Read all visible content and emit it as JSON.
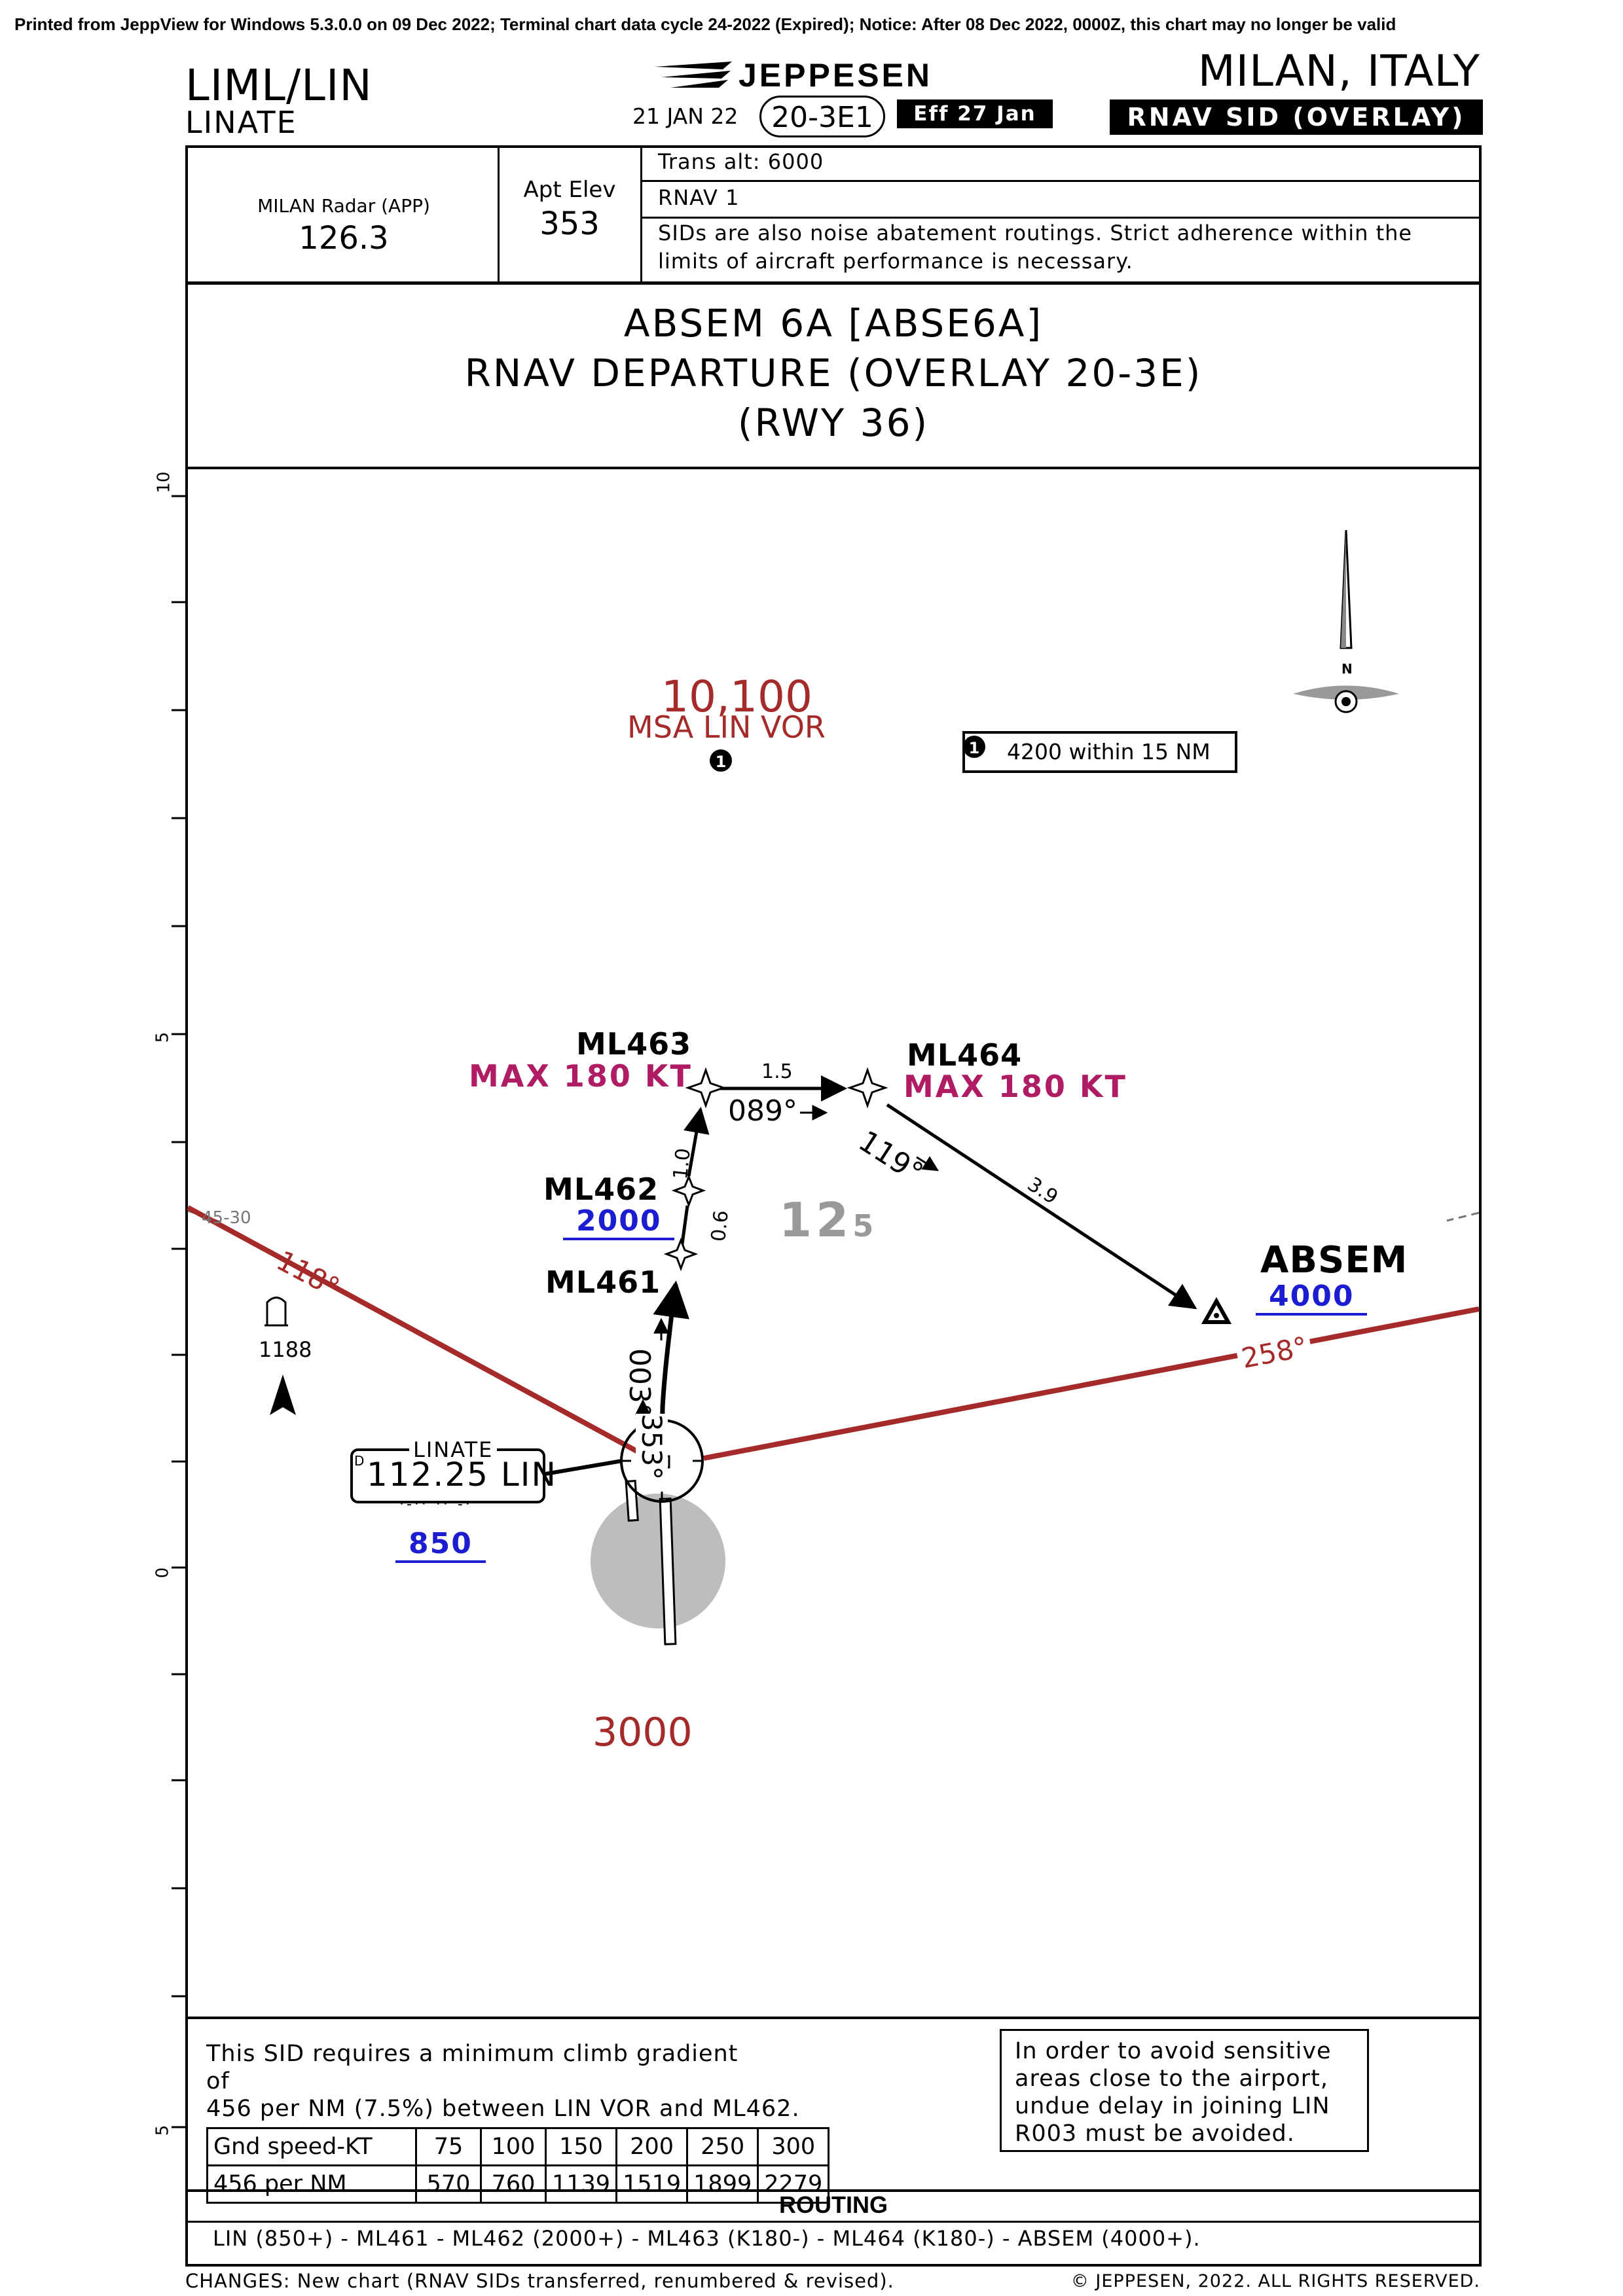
{
  "print_note": "Printed from JeppView for Windows 5.3.0.0 on 09 Dec 2022; Terminal chart data cycle 24-2022 (Expired); Notice: After 08 Dec 2022, 0000Z, this chart may no longer be valid",
  "header": {
    "ident": "LIML/LIN",
    "airport": "LINATE",
    "brand": "JEPPESEN",
    "date": "21 JAN 22",
    "chart_number": "20-3E1",
    "effective": "Eff 27 Jan",
    "city": "MILAN, ITALY",
    "procedure_type": "RNAV SID (OVERLAY)"
  },
  "info": {
    "comm_label": "MILAN Radar (APP)",
    "comm_freq": "126.3",
    "elev_label": "Apt Elev",
    "elev_value": "353",
    "trans_alt": "Trans alt: 6000",
    "nav_spec": "RNAV 1",
    "note_line1": "SIDs are also noise abatement routings. Strict adherence within the",
    "note_line2": "limits of aircraft performance is necessary."
  },
  "title": {
    "line1": "ABSEM 6A [ABSE6A]",
    "line2": "RNAV DEPARTURE (OVERLAY 20-3E)",
    "line3": "(RWY 36)"
  },
  "map": {
    "msa_altitude": "10,100",
    "msa_label": "MSA LIN VOR",
    "sector_note": "4200 within 15 NM",
    "north_label": "N",
    "mora_main": "12",
    "mora_small": "5",
    "min_alt": "3000",
    "obstacle_elev": "1188",
    "airway_label": "45-30",
    "scale_ticks": [
      "10",
      "5",
      "0",
      "5"
    ],
    "navaid": {
      "name": "LINATE",
      "freq": "112.25 LIN",
      "alt": "850",
      "prefix": "D"
    },
    "waypoints": {
      "ml461": {
        "name": "ML461"
      },
      "ml462": {
        "name": "ML462",
        "alt": "2000"
      },
      "ml463": {
        "name": "ML463",
        "speed": "MAX 180 KT"
      },
      "ml464": {
        "name": "ML464",
        "speed": "MAX 180 KT"
      },
      "absem": {
        "name": "ABSEM",
        "alt": "4000"
      }
    },
    "bearings": {
      "radial_118": "118°",
      "radial_258": "258°",
      "course_003": "003°",
      "course_353": "353°",
      "course_089": "089°",
      "course_119": "119°"
    },
    "distances": {
      "lin_ml461": "0.6",
      "ml462_ml463": "1.0",
      "ml463_ml464": "1.5",
      "ml464_absem": "3.9"
    },
    "colors": {
      "radial": "#a52a2a",
      "speed": "#b01c64",
      "altitude": "#1c1cd0",
      "mora": "#999999"
    }
  },
  "climb": {
    "line1": "This SID requires a minimum climb gradient",
    "line2": "of",
    "line3": "456 per NM (7.5%) between LIN VOR and ML462.",
    "table": {
      "row1": [
        "Gnd speed-KT",
        "75",
        "100",
        "150",
        "200",
        "250",
        "300"
      ],
      "row2": [
        "456 per NM",
        "570",
        "760",
        "1139",
        "1519",
        "1899",
        "2279"
      ]
    }
  },
  "note_box": {
    "line1": "In order to avoid sensitive",
    "line2": "areas close to the airport,",
    "line3": "undue delay in joining LIN",
    "line4": "R003 must be avoided."
  },
  "routing": {
    "title": "ROUTING",
    "text": "LIN (850+) - ML461 - ML462 (2000+) - ML463 (K180-) - ML464 (K180-) - ABSEM (4000+)."
  },
  "footer": {
    "changes": "CHANGES:  New chart (RNAV SIDs transferred, renumbered & revised).",
    "copyright": "© JEPPESEN, 2022. ALL RIGHTS RESERVED."
  }
}
